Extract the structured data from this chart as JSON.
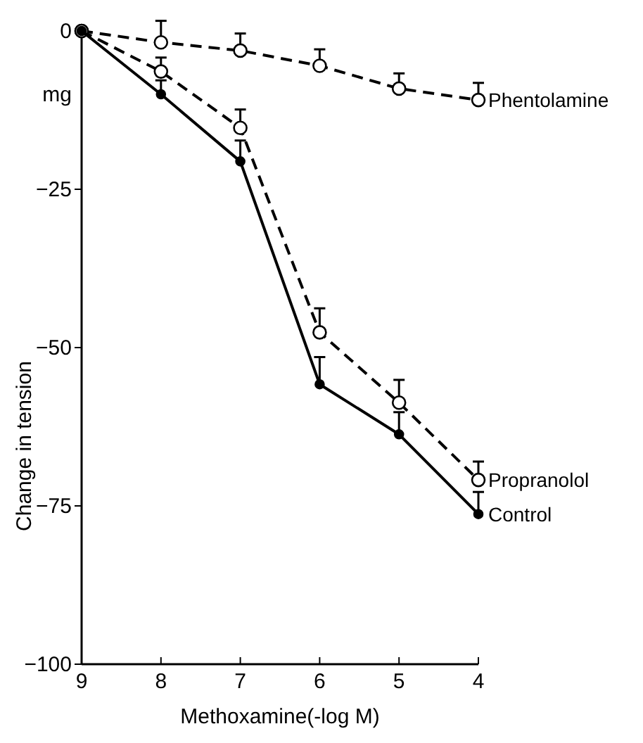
{
  "chart_data": {
    "type": "line",
    "xlabel": "Methoxamine(-log M)",
    "ylabel": "Change in tension",
    "annotations": [
      "mg"
    ],
    "x": [
      9,
      8,
      7,
      6,
      5,
      4
    ],
    "xlim": [
      9,
      4
    ],
    "xticks": [
      9,
      8,
      7,
      6,
      5,
      4
    ],
    "ylim": [
      -100,
      0
    ],
    "yticks": [
      0,
      -25,
      -50,
      -75,
      -100
    ],
    "grid": false,
    "marker": "circle",
    "series": [
      {
        "name": "Phentolamine",
        "color": "#000000",
        "line_style": "dashed",
        "values": [
          0,
          -1.8,
          -3.1,
          -5.5,
          -9.1,
          -10.9
        ],
        "errors": [
          null,
          [
            -1.8,
            1.6
          ],
          [
            -3.1,
            -0.4
          ],
          [
            -5.5,
            -2.9
          ],
          [
            -9.1,
            -6.7
          ],
          [
            -10.9,
            -8.2
          ]
        ]
      },
      {
        "name": "Propranolol",
        "color": "#000000",
        "line_style": "dashed",
        "values": [
          0,
          -6.4,
          -15.3,
          -47.6,
          -58.7,
          -70.9
        ],
        "errors": [
          null,
          [
            -6.4,
            -4.2
          ],
          [
            -15.3,
            -12.4
          ],
          [
            -47.6,
            -43.8
          ],
          [
            -58.7,
            -55.1
          ],
          [
            -70.9,
            -68
          ]
        ]
      },
      {
        "name": "Control",
        "color": "#000000",
        "line_style": "solid",
        "values": [
          0,
          -10,
          -20.6,
          -55.8,
          -63.7,
          -76.3
        ],
        "errors": [
          null,
          [
            -10,
            -7.8
          ],
          [
            -20.6,
            -17.3
          ],
          [
            -55.8,
            -51.5
          ],
          [
            -63.7,
            -60.2
          ],
          [
            -76.3,
            -72.8
          ]
        ]
      }
    ]
  }
}
